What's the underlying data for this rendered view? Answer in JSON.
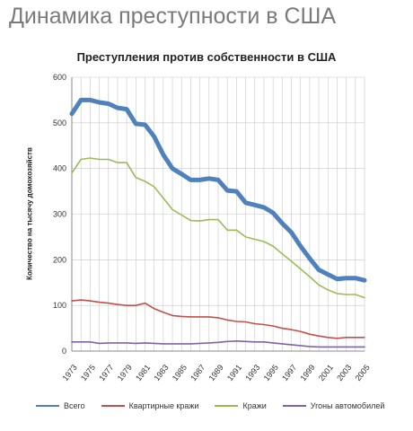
{
  "page": {
    "title": "Динамика преступности в США"
  },
  "chart_data": {
    "type": "line",
    "title": "Преступления против собственности в США",
    "xlabel": "",
    "ylabel": "Количество на тысячу домохозяйств",
    "xlim": [
      1973,
      2005
    ],
    "ylim": [
      0,
      600
    ],
    "yticks": [
      0,
      100,
      200,
      300,
      400,
      500,
      600
    ],
    "xticks": [
      1973,
      1975,
      1977,
      1979,
      1981,
      1983,
      1985,
      1987,
      1989,
      1991,
      1993,
      1995,
      1997,
      1999,
      2001,
      2003,
      2005
    ],
    "grid": true,
    "legend_position": "bottom",
    "x": [
      1973,
      1974,
      1975,
      1976,
      1977,
      1978,
      1979,
      1980,
      1981,
      1982,
      1983,
      1984,
      1985,
      1986,
      1987,
      1988,
      1989,
      1990,
      1991,
      1992,
      1993,
      1994,
      1995,
      1996,
      1997,
      1998,
      1999,
      2000,
      2001,
      2002,
      2003,
      2004,
      2005
    ],
    "series": [
      {
        "name": "Всего",
        "color": "#4f81bd",
        "values": [
          520,
          550,
          550,
          545,
          542,
          533,
          530,
          498,
          496,
          470,
          430,
          400,
          388,
          375,
          375,
          378,
          375,
          352,
          350,
          325,
          320,
          315,
          303,
          280,
          260,
          230,
          203,
          178,
          168,
          158,
          160,
          160,
          155
        ]
      },
      {
        "name": "Квартирные кражи",
        "color": "#c0504d",
        "values": [
          110,
          112,
          110,
          107,
          105,
          102,
          100,
          100,
          105,
          93,
          85,
          78,
          76,
          75,
          75,
          75,
          73,
          68,
          65,
          64,
          60,
          58,
          55,
          50,
          47,
          43,
          37,
          33,
          30,
          28,
          30,
          30,
          30
        ]
      },
      {
        "name": "Кражи",
        "color": "#9bbb59",
        "values": [
          390,
          420,
          423,
          420,
          420,
          413,
          413,
          380,
          372,
          360,
          335,
          310,
          298,
          286,
          285,
          288,
          288,
          265,
          265,
          250,
          245,
          240,
          230,
          213,
          197,
          180,
          163,
          145,
          134,
          126,
          124,
          124,
          117
        ]
      },
      {
        "name": "Угоны автомобилей",
        "color": "#8064a2",
        "values": [
          20,
          20,
          20,
          17,
          18,
          18,
          18,
          17,
          18,
          17,
          16,
          16,
          16,
          16,
          17,
          18,
          19,
          21,
          22,
          21,
          20,
          20,
          18,
          16,
          14,
          12,
          10,
          9,
          9,
          9,
          9,
          9,
          9
        ]
      }
    ]
  }
}
